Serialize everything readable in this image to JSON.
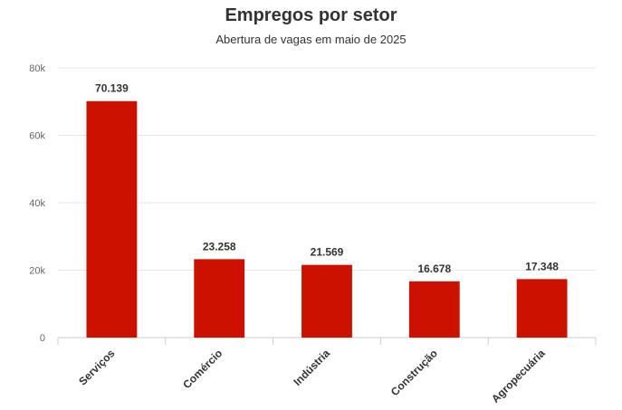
{
  "chart_data": {
    "type": "bar",
    "title": "Empregos por setor",
    "subtitle": "Abertura de vagas em maio de 2025",
    "xlabel": "",
    "ylabel": "",
    "categories": [
      "Serviços",
      "Comércio",
      "Indústria",
      "Construção",
      "Agropecuária"
    ],
    "values": [
      70139,
      23258,
      21569,
      16678,
      17348
    ],
    "data_labels": [
      "70.139",
      "23.258",
      "21.569",
      "16.678",
      "17.348"
    ],
    "ylim": [
      0,
      80000
    ],
    "yticks": [
      0,
      20000,
      40000,
      60000,
      80000
    ],
    "ytick_labels": [
      "0",
      "20k",
      "40k",
      "60k",
      "80k"
    ],
    "grid": true,
    "legend": "none",
    "bar_color": "#cc1100"
  }
}
